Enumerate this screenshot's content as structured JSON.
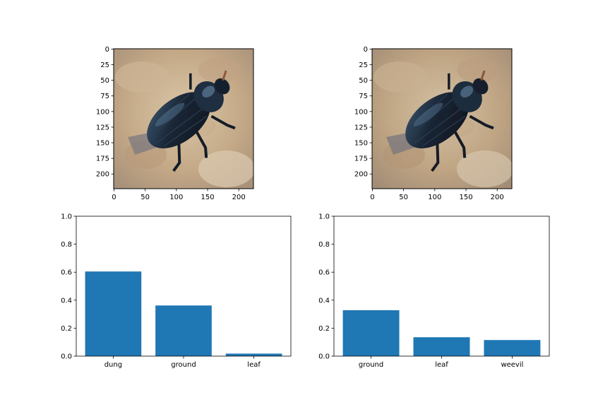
{
  "images": [
    {
      "subject": "black dung beetle on sandy ground",
      "xticks": [
        "0",
        "50",
        "100",
        "150",
        "200"
      ],
      "yticks": [
        "0",
        "25",
        "50",
        "75",
        "100",
        "125",
        "150",
        "175",
        "200"
      ]
    },
    {
      "subject": "black dung beetle on sandy ground (perturbed)",
      "xticks": [
        "0",
        "50",
        "100",
        "150",
        "200"
      ],
      "yticks": [
        "0",
        "25",
        "50",
        "75",
        "100",
        "125",
        "150",
        "175",
        "200"
      ]
    }
  ],
  "colors": {
    "bar": "#1f77b4",
    "beetle_body": "#1b2838",
    "beetle_highlight": "#5a7f9c",
    "ground_light": "#d8c8b0",
    "ground_dark": "#a68868"
  },
  "chart_data": [
    {
      "type": "bar",
      "categories": [
        "dung",
        "ground",
        "leaf"
      ],
      "values": [
        0.605,
        0.362,
        0.018
      ],
      "ylim": [
        0,
        1.0
      ],
      "yticks": [
        "0.0",
        "0.2",
        "0.4",
        "0.6",
        "0.8",
        "1.0"
      ],
      "grid": false
    },
    {
      "type": "bar",
      "categories": [
        "ground",
        "leaf",
        "weevil"
      ],
      "values": [
        0.328,
        0.135,
        0.115
      ],
      "ylim": [
        0,
        1.0
      ],
      "yticks": [
        "0.0",
        "0.2",
        "0.4",
        "0.6",
        "0.8",
        "1.0"
      ],
      "grid": false
    }
  ]
}
